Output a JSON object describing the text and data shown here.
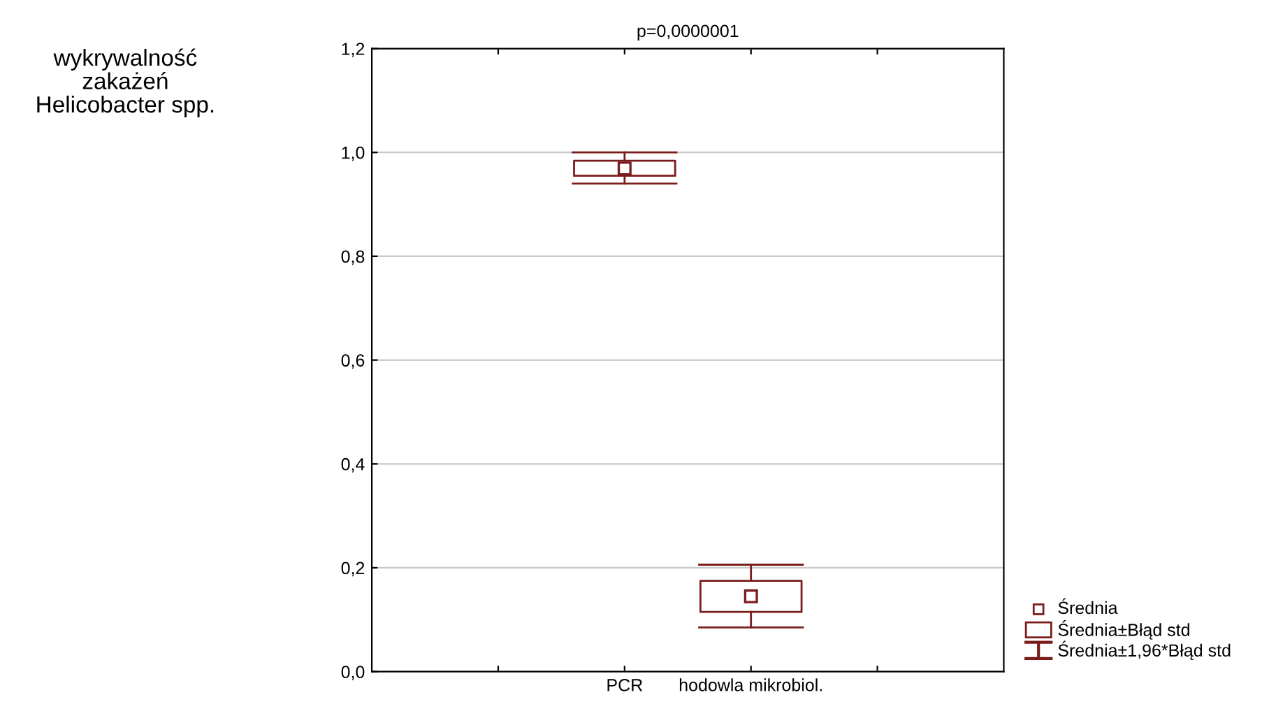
{
  "chart_data": {
    "type": "box",
    "title": "p=0,0000001",
    "categories": [
      null,
      "PCR",
      "hodowla mikrobiol.",
      null
    ],
    "boxes": [
      null,
      {
        "low": 0.94,
        "q1": 0.955,
        "median": 0.969,
        "q3": 0.984,
        "high": 1.0
      },
      {
        "low": 0.085,
        "q1": 0.115,
        "median": 0.145,
        "q3": 0.175,
        "high": 0.206
      },
      null
    ],
    "color": "#7a1c1c",
    "ylim": [
      0,
      1.2
    ],
    "yticks": [
      {
        "value": 0,
        "label": "0,0"
      },
      {
        "value": 0.2,
        "label": "0,2"
      },
      {
        "value": 0.4,
        "label": "0,4"
      },
      {
        "value": 0.6,
        "label": "0,6"
      },
      {
        "value": 0.8,
        "label": "0,8"
      },
      {
        "value": 1.0,
        "label": "1,0"
      },
      {
        "value": 1.2,
        "label": "1,2"
      }
    ],
    "grid": "y",
    "annotations": [
      "wykrywalność\nzakażeń\nHelicobacter spp.",
      "Średnia",
      "Średnia±Błąd std",
      "Średnia±1,96*Błąd std"
    ]
  }
}
